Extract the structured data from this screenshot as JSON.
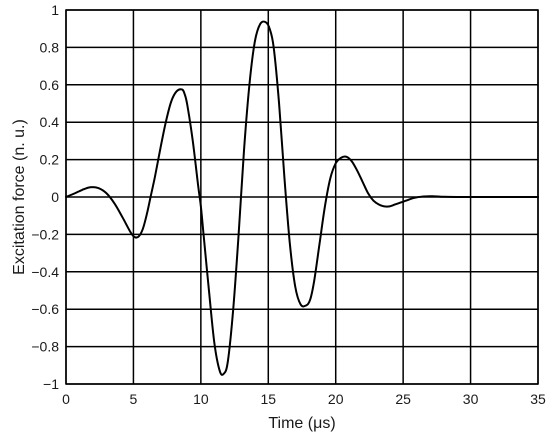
{
  "chart_data": {
    "type": "line",
    "title": "",
    "xlabel": "Time (μs)",
    "ylabel": "Excitation force (n. u.)",
    "xlim": [
      0,
      35
    ],
    "ylim": [
      -1,
      1
    ],
    "x_ticks": [
      0,
      5,
      10,
      15,
      20,
      25,
      30,
      35
    ],
    "y_ticks": [
      1,
      0.8,
      0.6,
      0.4,
      0.2,
      0,
      -0.2,
      -0.4,
      -0.6,
      -0.8,
      -1
    ],
    "x_tick_labels": [
      "0",
      "5",
      "10",
      "15",
      "20",
      "25",
      "30",
      "35"
    ],
    "y_tick_labels": [
      "1",
      "0.8",
      "0.6",
      "0.4",
      "0.2",
      "0",
      "−0.2",
      "−0.4",
      "−0.6",
      "−0.8",
      "−1"
    ],
    "grid": true,
    "series": [
      {
        "color": "#000000",
        "x": [
          0,
          0.6,
          1.2,
          1.8,
          2.4,
          3.0,
          3.6,
          4.2,
          4.8,
          5.1,
          5.4,
          5.7,
          6.0,
          6.3,
          6.6,
          7.0,
          7.4,
          7.8,
          8.2,
          8.6,
          8.8,
          9.0,
          9.4,
          9.8,
          10.0,
          10.2,
          10.6,
          11.0,
          11.4,
          11.7,
          12.0,
          12.4,
          12.8,
          13.2,
          13.6,
          14.0,
          14.4,
          14.8,
          15.1,
          15.4,
          15.8,
          16.2,
          16.6,
          17.0,
          17.4,
          17.8,
          18.1,
          18.4,
          18.8,
          19.2,
          19.6,
          20.0,
          20.4,
          20.8,
          21.2,
          21.6,
          22.0,
          22.4,
          22.8,
          23.2,
          23.6,
          24.0,
          24.4,
          24.8,
          25.2,
          25.8,
          26.5,
          27.2,
          28.0,
          29.0,
          30.0,
          35.0
        ],
        "y": [
          0,
          0.018,
          0.038,
          0.052,
          0.048,
          0.02,
          -0.035,
          -0.11,
          -0.19,
          -0.215,
          -0.21,
          -0.17,
          -0.09,
          0.01,
          0.11,
          0.26,
          0.4,
          0.51,
          0.565,
          0.575,
          0.55,
          0.49,
          0.3,
          0.06,
          -0.05,
          -0.2,
          -0.5,
          -0.78,
          -0.93,
          -0.945,
          -0.88,
          -0.6,
          -0.2,
          0.25,
          0.6,
          0.83,
          0.925,
          0.935,
          0.9,
          0.8,
          0.5,
          0.1,
          -0.25,
          -0.48,
          -0.575,
          -0.58,
          -0.55,
          -0.45,
          -0.25,
          -0.05,
          0.1,
          0.18,
          0.21,
          0.215,
          0.19,
          0.14,
          0.08,
          0.02,
          -0.02,
          -0.04,
          -0.05,
          -0.05,
          -0.04,
          -0.03,
          -0.02,
          -0.005,
          0.003,
          0.004,
          0.001,
          0,
          0,
          0
        ]
      }
    ]
  }
}
